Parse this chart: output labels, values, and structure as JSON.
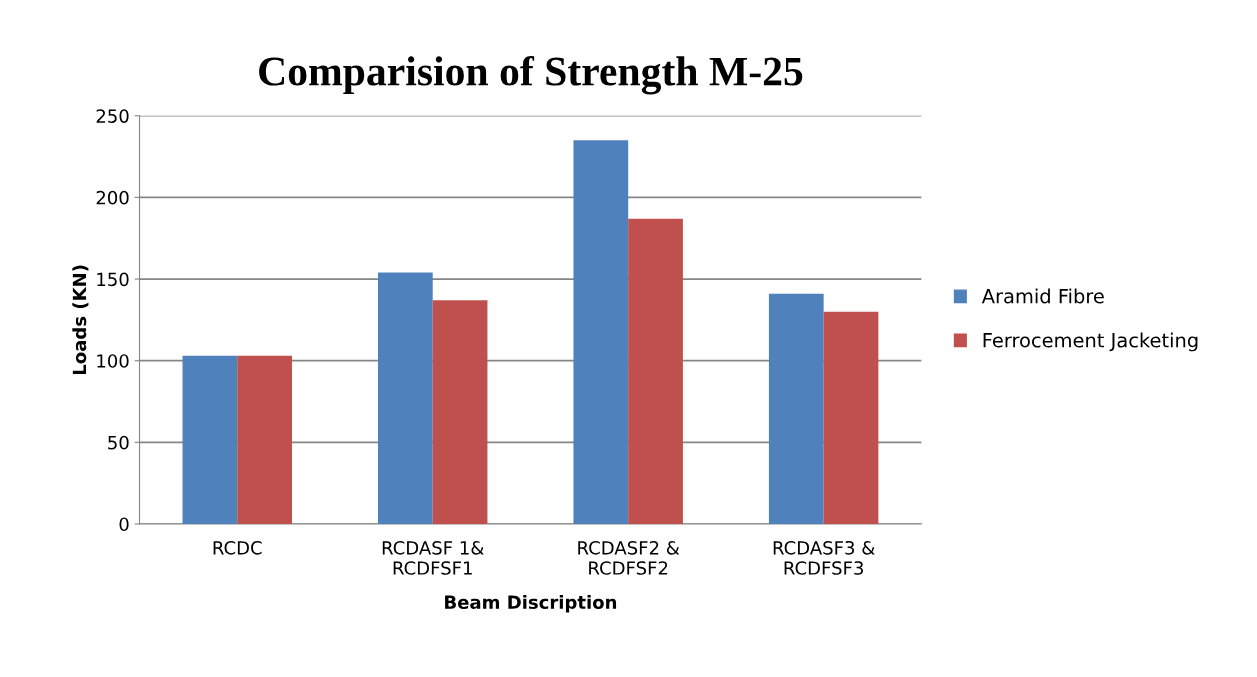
{
  "chart_data": {
    "type": "bar",
    "title": "Comparision of Strength M-25",
    "xlabel": "Beam Discription",
    "ylabel": "Loads (KN)",
    "categories": [
      "RCDC",
      "RCDASF 1&\nRCDFSF1",
      "RCDASF2 &\nRCDFSF2",
      "RCDASF3 &\nRCDFSF3"
    ],
    "series": [
      {
        "name": "Aramid Fibre",
        "color": "#4f81bd",
        "values": [
          103,
          154,
          235,
          141
        ]
      },
      {
        "name": "Ferrocement Jacketing",
        "color": "#c0504d",
        "values": [
          103,
          137,
          187,
          130
        ]
      }
    ],
    "ylim": [
      0,
      250
    ],
    "yticks": [
      0,
      50,
      100,
      150,
      200,
      250
    ],
    "grid": "y",
    "legend": "right"
  }
}
